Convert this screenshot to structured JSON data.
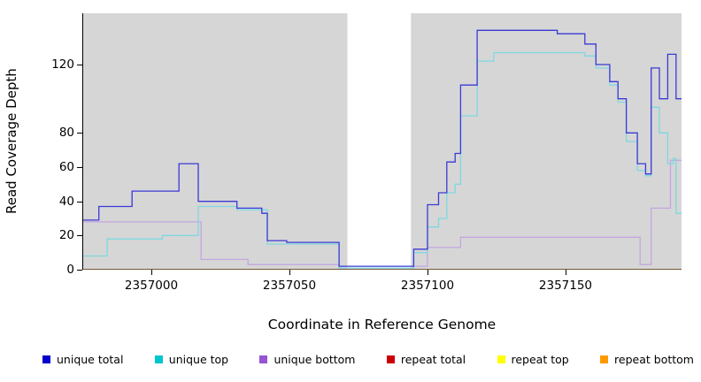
{
  "chart_data": {
    "type": "line",
    "title": "",
    "xlabel": "Coordinate in Reference Genome",
    "ylabel": "Read Coverage Depth",
    "xlim": [
      2356975,
      2357192
    ],
    "ylim": [
      0,
      150
    ],
    "x_ticks": [
      2357000,
      2357050,
      2357100,
      2357150
    ],
    "y_ticks": [
      0,
      20,
      40,
      60,
      80,
      120
    ],
    "grid": false,
    "legend_position": "bottom",
    "plot_bg": "#d6d6d6",
    "gap_region": {
      "start": 2357071,
      "end": 2357094
    },
    "series": [
      {
        "name": "repeat total",
        "slug": "repeat-total",
        "color": "#cd0000",
        "points": [
          [
            2356975,
            0
          ],
          [
            2357192,
            0
          ]
        ]
      },
      {
        "name": "repeat top",
        "slug": "repeat-top",
        "color": "#ffff00",
        "points": [
          [
            2356975,
            0
          ],
          [
            2357192,
            0
          ]
        ]
      },
      {
        "name": "repeat bottom",
        "slug": "repeat-bottom",
        "color": "#ff9d2e",
        "points": [
          [
            2356975,
            0
          ],
          [
            2357192,
            0
          ]
        ]
      },
      {
        "name": "unique bottom",
        "slug": "unique-bottom",
        "color": "#c3a6e0",
        "points": [
          [
            2356975,
            28
          ],
          [
            2357018,
            6
          ],
          [
            2357035,
            3
          ],
          [
            2357068,
            1
          ],
          [
            2357095,
            2
          ],
          [
            2357100,
            13
          ],
          [
            2357112,
            19
          ],
          [
            2357177,
            3
          ],
          [
            2357181,
            36
          ],
          [
            2357188,
            64
          ],
          [
            2357192,
            64
          ]
        ]
      },
      {
        "name": "unique top",
        "slug": "unique-top",
        "color": "#7fd8e0",
        "points": [
          [
            2356975,
            8
          ],
          [
            2356984,
            18
          ],
          [
            2357004,
            20
          ],
          [
            2357017,
            37
          ],
          [
            2357031,
            35
          ],
          [
            2357042,
            15
          ],
          [
            2357068,
            1
          ],
          [
            2357095,
            10
          ],
          [
            2357100,
            25
          ],
          [
            2357104,
            30
          ],
          [
            2357107,
            45
          ],
          [
            2357110,
            50
          ],
          [
            2357112,
            90
          ],
          [
            2357118,
            122
          ],
          [
            2357124,
            127
          ],
          [
            2357157,
            125
          ],
          [
            2357161,
            118
          ],
          [
            2357166,
            108
          ],
          [
            2357169,
            98
          ],
          [
            2357172,
            75
          ],
          [
            2357176,
            58
          ],
          [
            2357179,
            55
          ],
          [
            2357181,
            95
          ],
          [
            2357184,
            80
          ],
          [
            2357187,
            62
          ],
          [
            2357189,
            65
          ],
          [
            2357190,
            33
          ],
          [
            2357192,
            33
          ]
        ]
      },
      {
        "name": "unique total",
        "slug": "unique-total",
        "color": "#3a3ad6",
        "points": [
          [
            2356975,
            29
          ],
          [
            2356981,
            37
          ],
          [
            2356993,
            46
          ],
          [
            2357010,
            62
          ],
          [
            2357017,
            40
          ],
          [
            2357031,
            36
          ],
          [
            2357040,
            33
          ],
          [
            2357042,
            17
          ],
          [
            2357049,
            16
          ],
          [
            2357068,
            2
          ],
          [
            2357095,
            12
          ],
          [
            2357100,
            38
          ],
          [
            2357104,
            45
          ],
          [
            2357107,
            63
          ],
          [
            2357110,
            68
          ],
          [
            2357112,
            108
          ],
          [
            2357118,
            140
          ],
          [
            2357147,
            138
          ],
          [
            2357157,
            132
          ],
          [
            2357161,
            120
          ],
          [
            2357166,
            110
          ],
          [
            2357169,
            100
          ],
          [
            2357172,
            80
          ],
          [
            2357176,
            62
          ],
          [
            2357179,
            56
          ],
          [
            2357181,
            118
          ],
          [
            2357184,
            100
          ],
          [
            2357187,
            126
          ],
          [
            2357190,
            100
          ],
          [
            2357192,
            100
          ]
        ]
      }
    ],
    "legend": [
      {
        "label": "unique total",
        "slug": "unique-total",
        "color": "#0000cd"
      },
      {
        "label": "unique top",
        "slug": "unique-top",
        "color": "#00c5cd"
      },
      {
        "label": "unique bottom",
        "slug": "unique-bottom",
        "color": "#9455d4"
      },
      {
        "label": "repeat total",
        "slug": "repeat-total",
        "color": "#cd0000"
      },
      {
        "label": "repeat top",
        "slug": "repeat-top",
        "color": "#ffff00"
      },
      {
        "label": "repeat bottom",
        "slug": "repeat-bottom",
        "color": "#ff9900"
      }
    ]
  }
}
